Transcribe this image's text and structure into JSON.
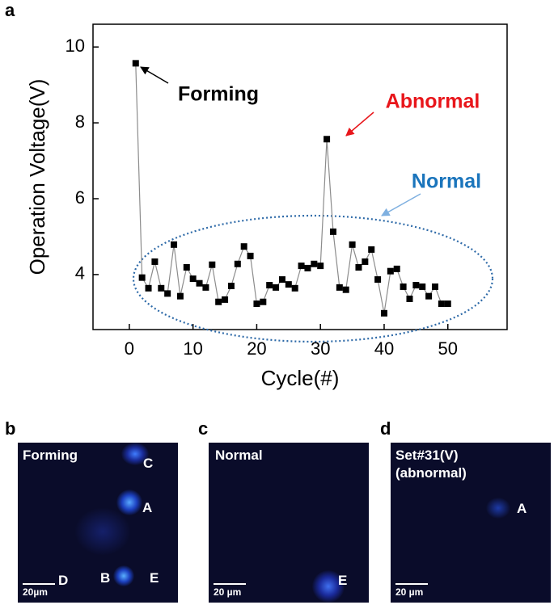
{
  "panel_label": "a",
  "chart_data": {
    "type": "line",
    "xlabel": "Cycle(#)",
    "ylabel": "Operation Voltage(V)",
    "x": [
      1,
      2,
      3,
      4,
      5,
      6,
      7,
      8,
      9,
      10,
      11,
      12,
      13,
      14,
      15,
      16,
      17,
      18,
      19,
      20,
      21,
      22,
      23,
      24,
      25,
      26,
      27,
      28,
      29,
      30,
      31,
      32,
      33,
      34,
      35,
      36,
      37,
      38,
      39,
      40,
      41,
      42,
      43,
      44,
      45,
      46,
      47,
      48,
      49,
      50
    ],
    "values": [
      9.57,
      3.92,
      3.64,
      4.34,
      3.64,
      3.5,
      4.79,
      3.43,
      4.19,
      3.89,
      3.77,
      3.66,
      4.26,
      3.28,
      3.34,
      3.7,
      4.28,
      4.74,
      4.49,
      3.23,
      3.28,
      3.72,
      3.66,
      3.87,
      3.74,
      3.64,
      4.23,
      4.17,
      4.28,
      4.23,
      7.57,
      5.13,
      3.66,
      3.6,
      4.79,
      4.19,
      4.34,
      4.66,
      3.87,
      2.98,
      4.09,
      4.15,
      3.68,
      3.36,
      3.72,
      3.68,
      3.43,
      3.68,
      3.23,
      3.23
    ],
    "color": "#000000",
    "line_color": "#8c8c8c",
    "xlim": [
      -5.7,
      59.3
    ],
    "xticks": [
      0,
      10,
      20,
      30,
      40,
      50
    ],
    "ylim": [
      2.55,
      10.6
    ],
    "yticks": [
      4,
      6,
      8,
      10
    ],
    "annotations": [
      {
        "text": "Forming",
        "color": "#000000"
      },
      {
        "text": "Abnormal",
        "color": "#e8161b"
      },
      {
        "text": "Normal",
        "color": "#1b75bc"
      }
    ]
  },
  "micrographs": [
    {
      "panel_label": "b",
      "title": "Forming",
      "spots": [
        "C",
        "A",
        "D",
        "B",
        "E"
      ],
      "scale_bar": "20µm"
    },
    {
      "panel_label": "c",
      "title": "Normal",
      "spots": [
        "E"
      ],
      "scale_bar": "20 µm"
    },
    {
      "panel_label": "d",
      "title": "Set#31(V)",
      "subtitle": "(abnormal)",
      "spots": [
        "A"
      ],
      "scale_bar": "20 µm"
    }
  ]
}
